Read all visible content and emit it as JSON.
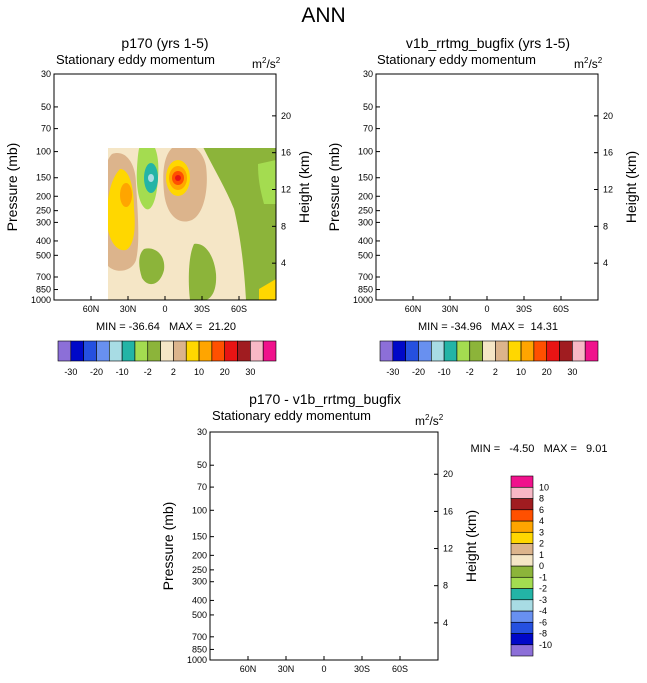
{
  "page": {
    "title": "ANN"
  },
  "shared": {
    "subtitle": "Stationary eddy momentum",
    "units_base": "m",
    "units_sup1": "2",
    "units_mid": "/s",
    "units_sup2": "2",
    "ylabel_left": "Pressure (mb)",
    "ylabel_right": "Height (km)",
    "pressure_ticks": [
      "30",
      "50",
      "70",
      "100",
      "150",
      "200",
      "250",
      "300",
      "400",
      "500",
      "700",
      "850",
      "1000"
    ],
    "height_ticks": [
      "20",
      "16",
      "12",
      "8",
      "4"
    ],
    "lat_ticks": [
      "60N",
      "30N",
      "0",
      "30S",
      "60S"
    ]
  },
  "colors": {
    "abs_palette": [
      "#8c6fd8",
      "#0008c8",
      "#2550e0",
      "#6890f0",
      "#a8dce4",
      "#23b4a6",
      "#a4dc50",
      "#8cb43a",
      "#f5e6c6",
      "#dcb48c",
      "#ffd700",
      "#ffa500",
      "#ff5000",
      "#e81414",
      "#a01c20",
      "#f8b8c6",
      "#f0128c"
    ],
    "diff_palette": [
      "#8c6fd8",
      "#0008c8",
      "#2550e0",
      "#6890f0",
      "#a8dce4",
      "#23b4a6",
      "#a4dc50",
      "#8cb43a",
      "#f5e6c6",
      "#dcb48c",
      "#ffd700",
      "#ffa500",
      "#ff5000",
      "#a01c20",
      "#f8b8c6",
      "#f0128c"
    ]
  },
  "panels": {
    "left": {
      "title": "p170 (yrs 1-5)",
      "stats": "MIN = -36.64   MAX =  21.20"
    },
    "right": {
      "title": "v1b_rrtmg_bugfix (yrs 1-5)",
      "stats": "MIN = -34.96   MAX =  14.31"
    },
    "diff": {
      "title": "p170 - v1b_rrtmg_bugfix",
      "stats": "MIN =   -4.50   MAX =   9.01"
    }
  },
  "chart_data": [
    {
      "type": "heatmap",
      "title": "p170 (yrs 1-5)",
      "subtitle": "Stationary eddy momentum",
      "xlabel": "",
      "ylabel": "Pressure (mb)",
      "ylabel_right": "Height (km)",
      "x_ticks": [
        "60N",
        "30N",
        "0",
        "30S",
        "60S"
      ],
      "y_ticks": [
        30,
        50,
        70,
        100,
        150,
        200,
        250,
        300,
        400,
        500,
        700,
        850,
        1000
      ],
      "min": -36.64,
      "max": 21.2,
      "colorbar_labels": [
        "-30",
        "-20",
        "-10",
        "-2",
        "2",
        "10",
        "20",
        "30"
      ]
    },
    {
      "type": "heatmap",
      "title": "v1b_rrtmg_bugfix (yrs 1-5)",
      "subtitle": "Stationary eddy momentum",
      "xlabel": "",
      "ylabel": "Pressure (mb)",
      "ylabel_right": "Height (km)",
      "x_ticks": [
        "60N",
        "30N",
        "0",
        "30S",
        "60S"
      ],
      "y_ticks": [
        30,
        50,
        70,
        100,
        150,
        200,
        250,
        300,
        400,
        500,
        700,
        850,
        1000
      ],
      "min": -34.96,
      "max": 14.31,
      "colorbar_labels": [
        "-30",
        "-20",
        "-10",
        "-2",
        "2",
        "10",
        "20",
        "30"
      ]
    },
    {
      "type": "heatmap",
      "title": "p170 - v1b_rrtmg_bugfix",
      "subtitle": "Stationary eddy momentum",
      "xlabel": "",
      "ylabel": "Pressure (mb)",
      "ylabel_right": "Height (km)",
      "x_ticks": [
        "60N",
        "30N",
        "0",
        "30S",
        "60S"
      ],
      "y_ticks": [
        30,
        50,
        70,
        100,
        150,
        200,
        250,
        300,
        400,
        500,
        700,
        850,
        1000
      ],
      "min": -4.5,
      "max": 9.01,
      "colorbar_labels": [
        "10",
        "8",
        "6",
        "4",
        "3",
        "2",
        "1",
        "0",
        "-1",
        "-2",
        "-3",
        "-4",
        "-6",
        "-8",
        "-10"
      ]
    }
  ]
}
